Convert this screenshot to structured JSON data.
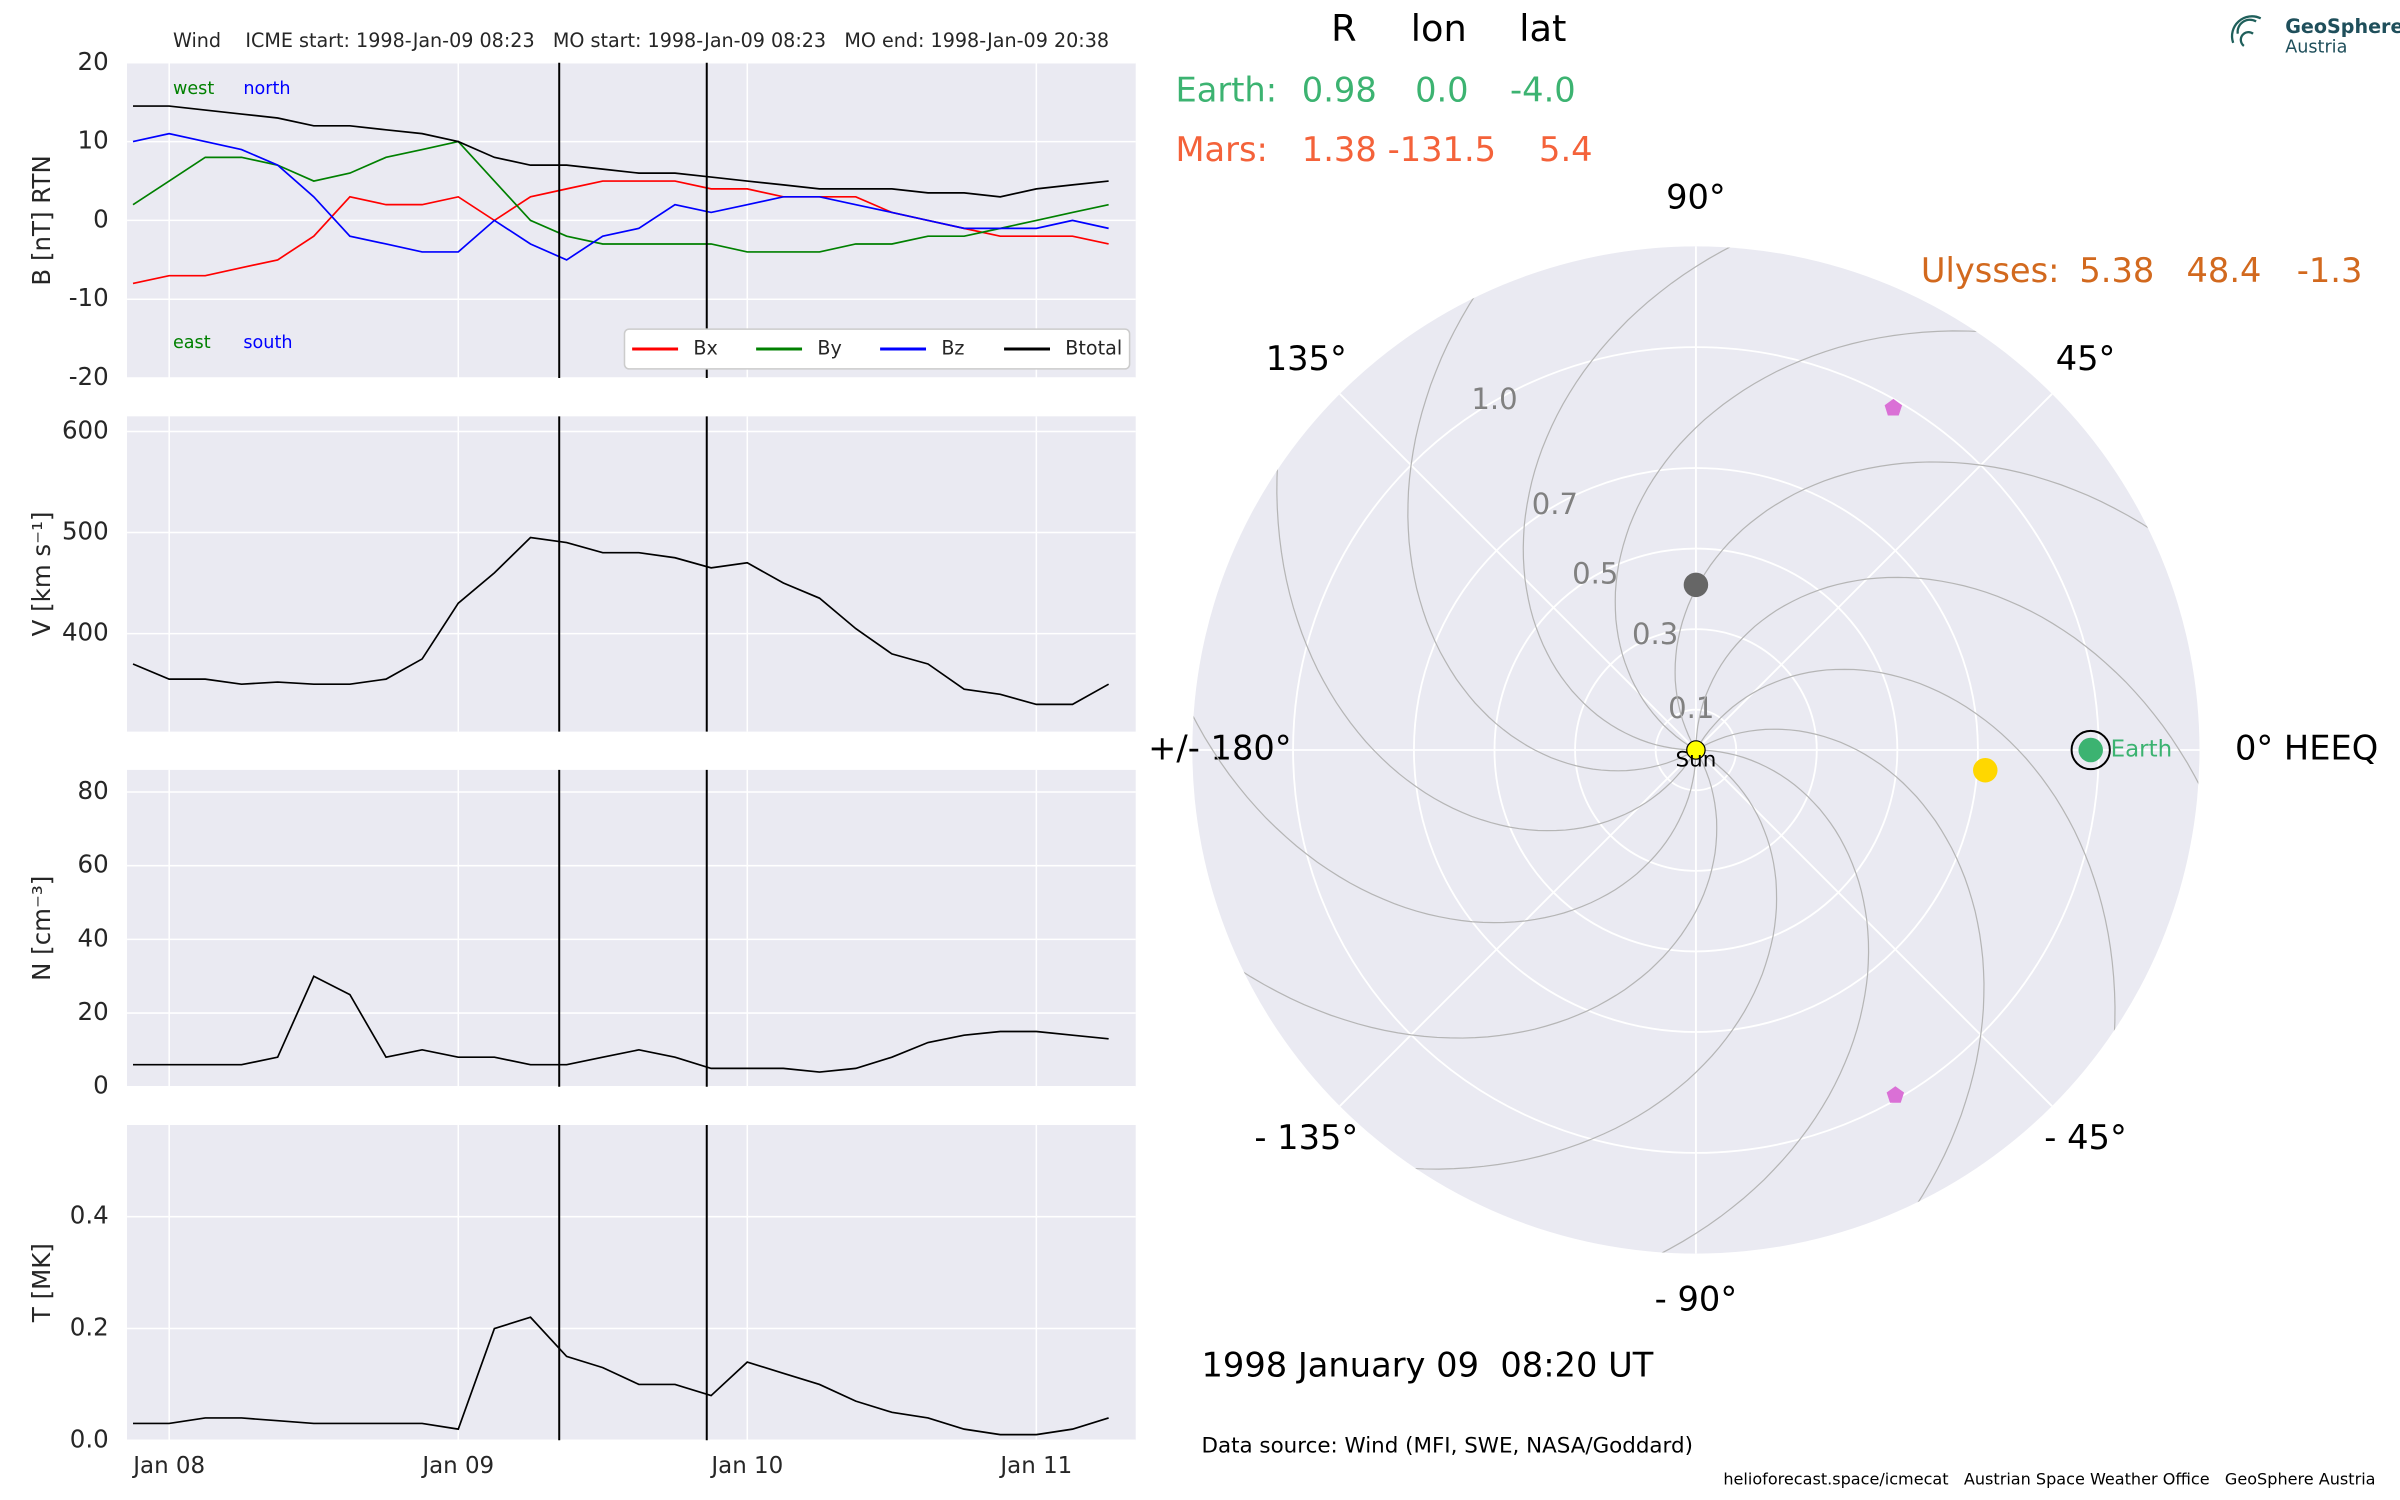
{
  "chart_data": [
    {
      "type": "line",
      "title": "Wind    ICME start: 1998-Jan-09 08:23   MO start: 1998-Jan-09 08:23   MO end: 1998-Jan-09 20:38",
      "ylabel": "B [nT] RTN",
      "xlim": [
        "1998-01-07T20:30",
        "1998-01-11T08:15"
      ],
      "x": [
        "1998-01-07T21:00",
        "1998-01-08T00:00",
        "1998-01-08T03:00",
        "1998-01-08T06:00",
        "1998-01-08T09:00",
        "1998-01-08T12:00",
        "1998-01-08T15:00",
        "1998-01-08T18:00",
        "1998-01-08T21:00",
        "1998-01-09T00:00",
        "1998-01-09T03:00",
        "1998-01-09T06:00",
        "1998-01-09T09:00",
        "1998-01-09T12:00",
        "1998-01-09T15:00",
        "1998-01-09T18:00",
        "1998-01-09T21:00",
        "1998-01-10T00:00",
        "1998-01-10T03:00",
        "1998-01-10T06:00",
        "1998-01-10T09:00",
        "1998-01-10T12:00",
        "1998-01-10T15:00",
        "1998-01-10T18:00",
        "1998-01-10T21:00",
        "1998-01-11T00:00",
        "1998-01-11T03:00",
        "1998-01-11T06:00"
      ],
      "ylim": [
        -20,
        20
      ],
      "yticks": [
        -20,
        -10,
        0,
        10,
        20
      ],
      "vlines": [
        "1998-01-09T08:23",
        "1998-01-09T20:38"
      ],
      "legend": "lower right",
      "annotations": [
        {
          "text": "west",
          "color": "#008000"
        },
        {
          "text": "north",
          "color": "#0000ff"
        },
        {
          "text": "east",
          "color": "#008000"
        },
        {
          "text": "south",
          "color": "#0000ff"
        }
      ],
      "series": [
        {
          "name": "Bx",
          "color": "#ff0000",
          "values": [
            -8,
            -7,
            -7,
            -6,
            -5,
            -2,
            3,
            2,
            2,
            3,
            0,
            3,
            4,
            5,
            5,
            5,
            4,
            4,
            3,
            3,
            3,
            1,
            0,
            -1,
            -2,
            -2,
            -2,
            -3
          ]
        },
        {
          "name": "By",
          "color": "#008000",
          "values": [
            2,
            5,
            8,
            8,
            7,
            5,
            6,
            8,
            9,
            10,
            5,
            0,
            -2,
            -3,
            -3,
            -3,
            -3,
            -4,
            -4,
            -4,
            -3,
            -3,
            -2,
            -2,
            -1,
            0,
            1,
            2
          ]
        },
        {
          "name": "Bz",
          "color": "#0000ff",
          "values": [
            10,
            11,
            10,
            9,
            7,
            3,
            -2,
            -3,
            -4,
            -4,
            0,
            -3,
            -5,
            -2,
            -1,
            2,
            1,
            2,
            3,
            3,
            2,
            1,
            0,
            -1,
            -1,
            -1,
            0,
            -1
          ]
        },
        {
          "name": "Btotal",
          "color": "#000000",
          "values": [
            14.5,
            14.5,
            14,
            13.5,
            13,
            12,
            12,
            11.5,
            11,
            10,
            8,
            7,
            7,
            6.5,
            6,
            6,
            5.5,
            5,
            4.5,
            4,
            4,
            4,
            3.5,
            3.5,
            3,
            4,
            4.5,
            5
          ]
        }
      ]
    },
    {
      "type": "line",
      "ylabel": "V [km s⁻¹]",
      "xlim": [
        "1998-01-07T20:30",
        "1998-01-11T08:15"
      ],
      "x": [
        "1998-01-07T21:00",
        "1998-01-08T00:00",
        "1998-01-08T03:00",
        "1998-01-08T06:00",
        "1998-01-08T09:00",
        "1998-01-08T12:00",
        "1998-01-08T15:00",
        "1998-01-08T18:00",
        "1998-01-08T21:00",
        "1998-01-09T00:00",
        "1998-01-09T03:00",
        "1998-01-09T06:00",
        "1998-01-09T09:00",
        "1998-01-09T12:00",
        "1998-01-09T15:00",
        "1998-01-09T18:00",
        "1998-01-09T21:00",
        "1998-01-10T00:00",
        "1998-01-10T03:00",
        "1998-01-10T06:00",
        "1998-01-10T09:00",
        "1998-01-10T12:00",
        "1998-01-10T15:00",
        "1998-01-10T18:00",
        "1998-01-10T21:00",
        "1998-01-11T00:00",
        "1998-01-11T03:00",
        "1998-01-11T06:00"
      ],
      "ylim": [
        303,
        615
      ],
      "yticks": [
        400,
        500,
        600
      ],
      "color": "#000000",
      "values": [
        370,
        355,
        355,
        350,
        352,
        350,
        350,
        355,
        375,
        430,
        460,
        495,
        490,
        480,
        480,
        475,
        465,
        470,
        450,
        435,
        405,
        380,
        370,
        345,
        340,
        330,
        330,
        350
      ]
    },
    {
      "type": "line",
      "ylabel": "N [cm⁻³]",
      "xlim": [
        "1998-01-07T20:30",
        "1998-01-11T08:15"
      ],
      "x": [
        "1998-01-07T21:00",
        "1998-01-08T00:00",
        "1998-01-08T03:00",
        "1998-01-08T06:00",
        "1998-01-08T09:00",
        "1998-01-08T12:00",
        "1998-01-08T15:00",
        "1998-01-08T18:00",
        "1998-01-08T21:00",
        "1998-01-09T00:00",
        "1998-01-09T03:00",
        "1998-01-09T06:00",
        "1998-01-09T09:00",
        "1998-01-09T12:00",
        "1998-01-09T15:00",
        "1998-01-09T18:00",
        "1998-01-09T21:00",
        "1998-01-10T00:00",
        "1998-01-10T03:00",
        "1998-01-10T06:00",
        "1998-01-10T09:00",
        "1998-01-10T12:00",
        "1998-01-10T15:00",
        "1998-01-10T18:00",
        "1998-01-10T21:00",
        "1998-01-11T00:00",
        "1998-01-11T03:00",
        "1998-01-11T06:00"
      ],
      "ylim": [
        0,
        86
      ],
      "yticks": [
        0,
        20,
        40,
        60,
        80
      ],
      "color": "#000000",
      "values": [
        6,
        6,
        6,
        6,
        8,
        30,
        25,
        8,
        10,
        8,
        8,
        6,
        6,
        8,
        10,
        8,
        5,
        5,
        5,
        4,
        5,
        8,
        12,
        14,
        15,
        15,
        14,
        13
      ]
    },
    {
      "type": "line",
      "ylabel": "T [MK]",
      "xlim": [
        "1998-01-07T20:30",
        "1998-01-11T08:15"
      ],
      "x": [
        "1998-01-07T21:00",
        "1998-01-08T00:00",
        "1998-01-08T03:00",
        "1998-01-08T06:00",
        "1998-01-08T09:00",
        "1998-01-08T12:00",
        "1998-01-08T15:00",
        "1998-01-08T18:00",
        "1998-01-08T21:00",
        "1998-01-09T00:00",
        "1998-01-09T03:00",
        "1998-01-09T06:00",
        "1998-01-09T09:00",
        "1998-01-09T12:00",
        "1998-01-09T15:00",
        "1998-01-09T18:00",
        "1998-01-09T21:00",
        "1998-01-10T00:00",
        "1998-01-10T03:00",
        "1998-01-10T06:00",
        "1998-01-10T09:00",
        "1998-01-10T12:00",
        "1998-01-10T15:00",
        "1998-01-10T18:00",
        "1998-01-10T21:00",
        "1998-01-11T00:00",
        "1998-01-11T03:00",
        "1998-01-11T06:00"
      ],
      "xticks": [
        {
          "value": "1998-01-08T00:00",
          "label": "Jan 08"
        },
        {
          "value": "1998-01-09T00:00",
          "label": "Jan 09"
        },
        {
          "value": "1998-01-10T00:00",
          "label": "Jan 10"
        },
        {
          "value": "1998-01-11T00:00",
          "label": "Jan 11"
        }
      ],
      "ylim": [
        0,
        0.564
      ],
      "yticks": [
        {
          "value": 0,
          "label": "0.0"
        },
        0.2,
        0.4
      ],
      "color": "#000000",
      "values": [
        0.03,
        0.03,
        0.04,
        0.04,
        0.035,
        0.03,
        0.03,
        0.03,
        0.03,
        0.02,
        0.2,
        0.22,
        0.15,
        0.13,
        0.1,
        0.1,
        0.08,
        0.14,
        0.12,
        0.1,
        0.07,
        0.05,
        0.04,
        0.02,
        0.01,
        0.01,
        0.02,
        0.04
      ]
    },
    {
      "type": "polar",
      "header": [
        "R",
        "lon",
        "lat"
      ],
      "rows": [
        {
          "name": "Earth:",
          "color": "#3cb371",
          "values": [
            0.98,
            0,
            -4
          ],
          "value_labels": [
            "0.98",
            "0.0",
            "-4.0"
          ]
        },
        {
          "name": "Mars:",
          "color": "#f4623a",
          "values": [
            1.38,
            -131.5,
            5.4
          ]
        },
        {
          "name": "Ulysses:",
          "color": "#d2691e",
          "values": [
            5.38,
            48.4,
            -1.3
          ]
        }
      ],
      "plot_label": "Earth",
      "sun_label": "Sun",
      "rlim": [
        0,
        1.25
      ],
      "rticks": [
        0.1,
        0.3,
        0.5,
        0.7,
        {
          "value": 1,
          "label": "1.0"
        }
      ],
      "thetaticks": [
        {
          "value": 0,
          "label": "0° HEEQ"
        },
        {
          "value": 45,
          "label": "45°"
        },
        {
          "value": 90,
          "label": "90°"
        },
        {
          "value": 135,
          "label": "135°"
        },
        {
          "value": 180,
          "label": "+/- 180°"
        },
        {
          "value": -135,
          "label": "- 135°"
        },
        {
          "value": -90,
          "label": "- 90°"
        },
        {
          "value": -45,
          "label": "- 45°"
        }
      ],
      "points": [
        {
          "r": 0.41,
          "lon": 90,
          "color": "#666666",
          "marker": "circle"
        },
        {
          "r": 0.72,
          "lon": -4,
          "color": "#ffd700",
          "marker": "circle"
        },
        {
          "r": 0.98,
          "lon": 60,
          "color": "#da70d6",
          "marker": "pentagon"
        },
        {
          "r": 0.99,
          "lon": -60,
          "color": "#da70d6",
          "marker": "pentagon"
        }
      ],
      "date": "1998 January 09  08:20 UT",
      "source": "Data source: Wind (MFI, SWE, NASA/Goddard)",
      "footer": "helioforecast.space/icmecat   Austrian Space Weather Office   GeoSphere Austria",
      "logo": [
        "GeoSphere",
        "Austria"
      ]
    }
  ]
}
